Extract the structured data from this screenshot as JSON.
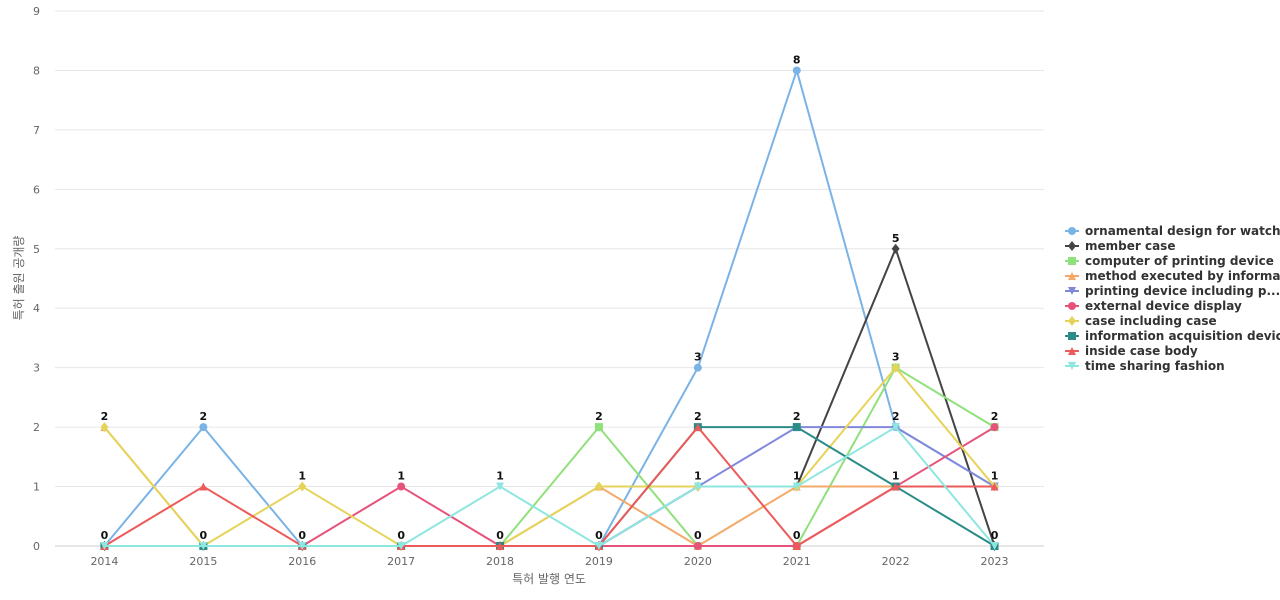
{
  "chart_data": {
    "type": "line",
    "xlabel": "특허 발행 연도",
    "ylabel": "특허 출원 공개량",
    "ylim": [
      0,
      9
    ],
    "yticks": [
      0,
      1,
      2,
      3,
      4,
      5,
      6,
      7,
      8,
      9
    ],
    "x": [
      "2014",
      "2015",
      "2016",
      "2017",
      "2018",
      "2019",
      "2020",
      "2021",
      "2022",
      "2023"
    ],
    "grid": true,
    "legend_position": "right",
    "series": [
      {
        "name": "ornamental design for watch",
        "color": "#7ab3e6",
        "marker": "circle",
        "values": [
          0,
          2,
          0,
          0,
          0,
          0,
          3,
          8,
          2,
          1
        ]
      },
      {
        "name": "member case",
        "color": "#444444",
        "marker": "diamond",
        "values": [
          0,
          0,
          0,
          0,
          0,
          0,
          1,
          1,
          5,
          0
        ]
      },
      {
        "name": "computer of printing device",
        "color": "#90e07c",
        "marker": "square",
        "values": [
          0,
          0,
          0,
          0,
          0,
          2,
          0,
          0,
          3,
          2
        ]
      },
      {
        "name": "method executed by informat...",
        "color": "#f3a96a",
        "marker": "triangle",
        "values": [
          2,
          0,
          0,
          0,
          0,
          1,
          0,
          1,
          1,
          1
        ]
      },
      {
        "name": "printing device including p...",
        "color": "#8088dc",
        "marker": "triangle-down",
        "values": [
          0,
          0,
          0,
          0,
          0,
          0,
          1,
          2,
          2,
          1
        ]
      },
      {
        "name": "external device display",
        "color": "#e6537a",
        "marker": "circle",
        "values": [
          0,
          0,
          0,
          1,
          0,
          0,
          0,
          0,
          1,
          2
        ]
      },
      {
        "name": "case including case",
        "color": "#e6d45a",
        "marker": "diamond",
        "values": [
          2,
          0,
          1,
          0,
          0,
          1,
          1,
          1,
          3,
          1
        ]
      },
      {
        "name": "information acquisition device",
        "color": "#2a8c88",
        "marker": "square",
        "values": [
          0,
          0,
          0,
          0,
          0,
          0,
          2,
          2,
          1,
          0
        ]
      },
      {
        "name": "inside case body",
        "color": "#ec5a5a",
        "marker": "triangle",
        "values": [
          0,
          1,
          0,
          0,
          0,
          0,
          2,
          0,
          1,
          1
        ]
      },
      {
        "name": "time sharing fashion",
        "color": "#8ee6e0",
        "marker": "triangle-down",
        "values": [
          0,
          0,
          0,
          0,
          1,
          0,
          1,
          1,
          2,
          0
        ]
      }
    ],
    "data_labels": [
      {
        "x": "2014",
        "top": 2,
        "bottom": 0
      },
      {
        "x": "2015",
        "top": 2,
        "bottom": 0
      },
      {
        "x": "2016",
        "top": 1,
        "bottom": 0
      },
      {
        "x": "2017",
        "top": 1,
        "bottom": 0
      },
      {
        "x": "2018",
        "top": 1,
        "bottom": 0
      },
      {
        "x": "2019",
        "top": 2,
        "bottom": 0
      },
      {
        "x": "2020",
        "top": 3,
        "mid": [
          2,
          1
        ],
        "bottom": 0
      },
      {
        "x": "2021",
        "top": 8,
        "mid": [
          2,
          1
        ],
        "bottom": 0
      },
      {
        "x": "2022",
        "top": 5,
        "mid": [
          3,
          2,
          1
        ]
      },
      {
        "x": "2023",
        "top": 2,
        "mid": [
          1
        ],
        "bottom": 0
      }
    ]
  }
}
